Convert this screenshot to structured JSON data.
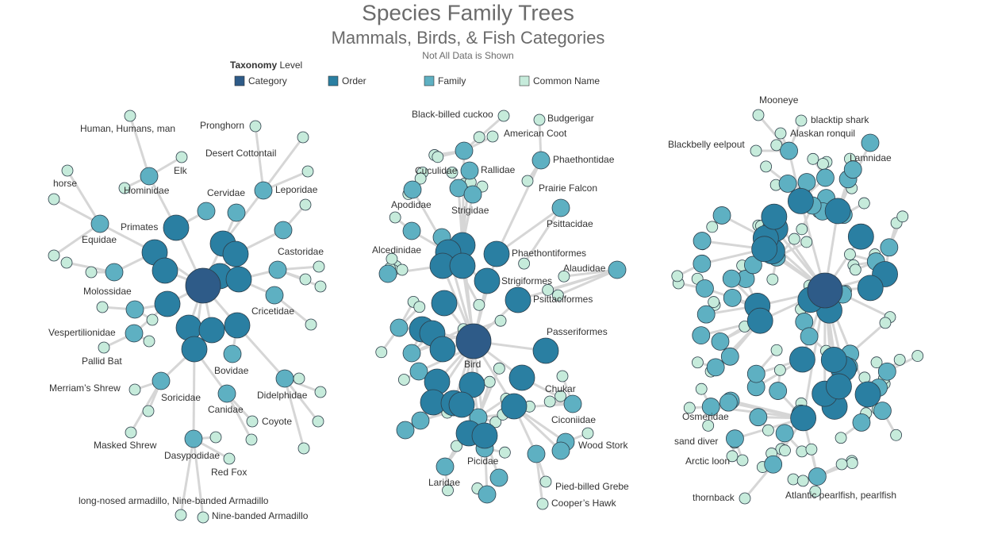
{
  "header": {
    "title": "Species Family Trees",
    "subtitle": "Mammals, Birds, & Fish Categories",
    "note": "Not All Data is Shown"
  },
  "legend": {
    "title": [
      "Taxonomy",
      "Level"
    ],
    "items": [
      {
        "name": "Category",
        "color": "#2e5b88"
      },
      {
        "name": "Order",
        "color": "#2a7fa2"
      },
      {
        "name": "Family",
        "color": "#5eb0c2"
      },
      {
        "name": "Common Name",
        "color": "#c6ebdb"
      }
    ]
  },
  "networks": [
    {
      "labels": [
        "Human, Humans, man",
        "Hominidae",
        "Elk",
        "Pronghorn",
        "Desert Cottontail",
        "Cervidae",
        "Leporidae",
        "horse",
        "Primates",
        "Equidae",
        "Castoridae",
        "Molossidae",
        "Cricetidae",
        "Vespertilionidae",
        "Pallid Bat",
        "Bovidae",
        "Merriam’s Shrew",
        "Soricidae",
        "Didelphidae",
        "Canidae",
        "Coyote",
        "Masked Shrew",
        "Dasypodidae",
        "Red Fox",
        "long-nosed armadillo, Nine-banded Armadillo",
        "Nine-banded Armadillo"
      ]
    },
    {
      "labels": [
        "Black-billed cuckoo",
        "Budgerigar",
        "American Coot",
        "Phaethontidae",
        "Cuculidae",
        "Rallidae",
        "Prairie Falcon",
        "Apodidae",
        "Strigidae",
        "Psittacidae",
        "Alcedinidae",
        "Phaethontiformes",
        "Alaudidae",
        "Strigiformes",
        "Psittaciformes",
        "Passeriformes",
        "Bird",
        "Chukar",
        "Ciconiidae",
        "Wood Stork",
        "Picidae",
        "Laridae",
        "Pied-billed Grebe",
        "Cooper’s Hawk"
      ]
    },
    {
      "labels": [
        "Mooneye",
        "blacktip shark",
        "Alaskan ronquil",
        "Blackbelly eelpout",
        "Lamnidae",
        "Osmeridae",
        "sand diver",
        "Arctic loon",
        "thornback",
        "Atlantic pearlfish, pearlfish"
      ]
    }
  ]
}
